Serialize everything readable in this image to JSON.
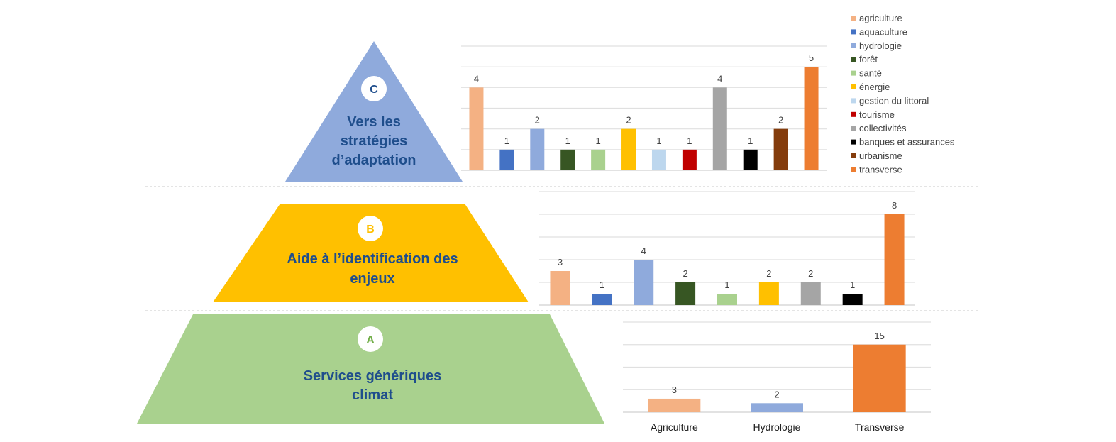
{
  "pyramid": {
    "levels": [
      {
        "letter": "C",
        "lines": [
          "Vers les",
          "stratégies",
          "d’adaptation"
        ],
        "color": "#8faadc",
        "letter_color": "#1f4e8c"
      },
      {
        "letter": "B",
        "lines": [
          "Aide à l’identification des",
          "enjeux"
        ],
        "color": "#ffc000",
        "letter_color": "#ffc000"
      },
      {
        "letter": "A",
        "lines": [
          "Services génériques",
          "climat"
        ],
        "color": "#a9d18e",
        "letter_color": "#70ad47"
      }
    ]
  },
  "legend": [
    {
      "label": "agriculture",
      "color": "#f4b183"
    },
    {
      "label": "aquaculture",
      "color": "#4472c4"
    },
    {
      "label": "hydrologie",
      "color": "#8faadc"
    },
    {
      "label": "forêt",
      "color": "#375623"
    },
    {
      "label": "santé",
      "color": "#a9d18e"
    },
    {
      "label": "énergie",
      "color": "#ffc000"
    },
    {
      "label": "gestion du littoral",
      "color": "#bdd7ee"
    },
    {
      "label": "tourisme",
      "color": "#c00000"
    },
    {
      "label": "collectivités",
      "color": "#a5a5a5"
    },
    {
      "label": "banques et assurances",
      "color": "#000000"
    },
    {
      "label": "urbanisme",
      "color": "#843c0c"
    },
    {
      "label": "transverse",
      "color": "#ed7d31"
    }
  ],
  "chart_data": [
    {
      "type": "bar",
      "level": "C",
      "ylim": [
        0,
        6
      ],
      "grid_step": 1,
      "grid": true,
      "legend": "right",
      "categories": [
        "agriculture",
        "aquaculture",
        "hydrologie",
        "forêt",
        "santé",
        "énergie",
        "gestion du littoral",
        "tourisme",
        "collectivités",
        "banques et assurances",
        "urbanisme",
        "transverse"
      ],
      "values": [
        4,
        1,
        2,
        1,
        1,
        2,
        1,
        1,
        4,
        1,
        2,
        5
      ]
    },
    {
      "type": "bar",
      "level": "B",
      "ylim": [
        0,
        10
      ],
      "grid_step": 2,
      "grid": true,
      "categories": [
        "agriculture",
        "aquaculture",
        "hydrologie",
        "forêt",
        "santé",
        "énergie",
        "collectivités",
        "banques et assurances",
        "transverse"
      ],
      "values": [
        3,
        1,
        4,
        2,
        1,
        2,
        2,
        1,
        8
      ]
    },
    {
      "type": "bar",
      "level": "A",
      "ylim": [
        0,
        20
      ],
      "grid_step": 5,
      "grid": true,
      "categories": [
        "agriculture",
        "hydrologie",
        "transverse"
      ],
      "tick_labels": [
        "Agriculture",
        "Hydrologie",
        "Transverse"
      ],
      "values": [
        3,
        2,
        15
      ]
    }
  ]
}
